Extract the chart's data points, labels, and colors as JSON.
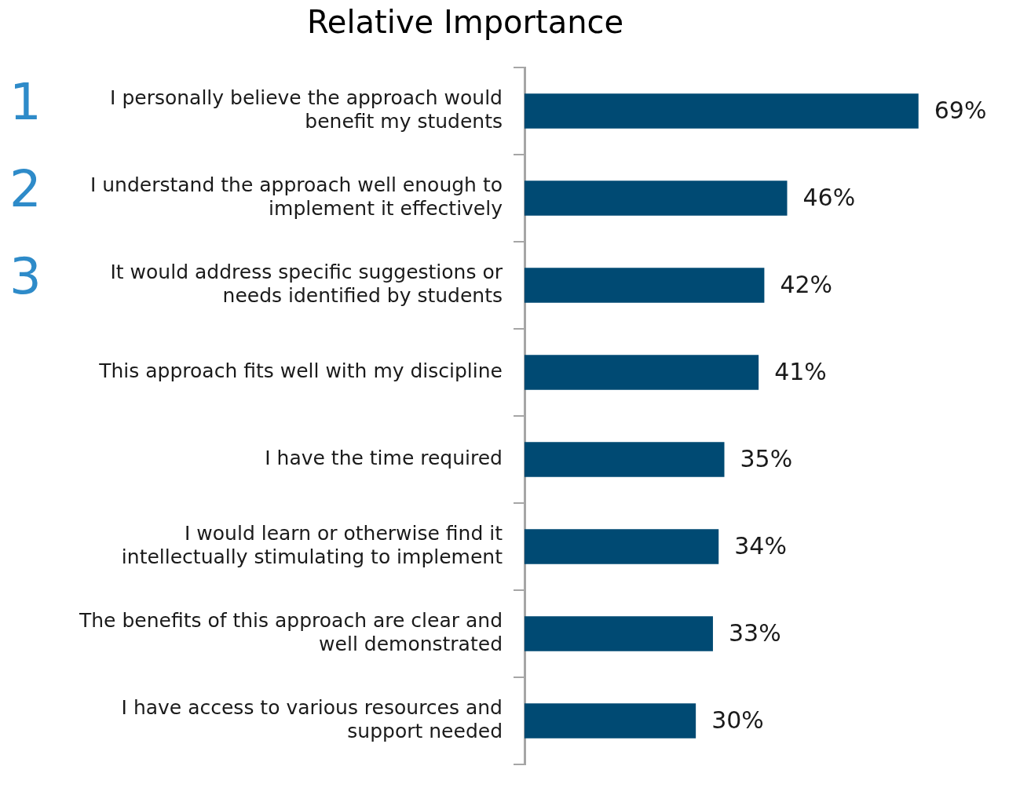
{
  "chart_data": {
    "type": "bar",
    "orientation": "horizontal",
    "title": "Relative Importance",
    "categories": [
      "I personally believe the approach would benefit my students",
      "I understand the approach well enough to implement it effectively",
      "It would address specific suggestions or needs identified by students",
      "This approach fits well with my discipline",
      "I have the time required",
      "I would learn or otherwise find it intellectually stimulating to implement",
      "The benefits of this approach are clear and well demonstrated",
      "I have access to various resources and support needed"
    ],
    "values": [
      69,
      46,
      42,
      41,
      35,
      34,
      33,
      30
    ],
    "value_labels": [
      "69%",
      "46%",
      "42%",
      "41%",
      "35%",
      "34%",
      "33%",
      "30%"
    ],
    "color": "#004a73",
    "grid": false,
    "legend": false,
    "tick_labels": "y",
    "annotations": [
      "1",
      "2",
      "3"
    ]
  }
}
